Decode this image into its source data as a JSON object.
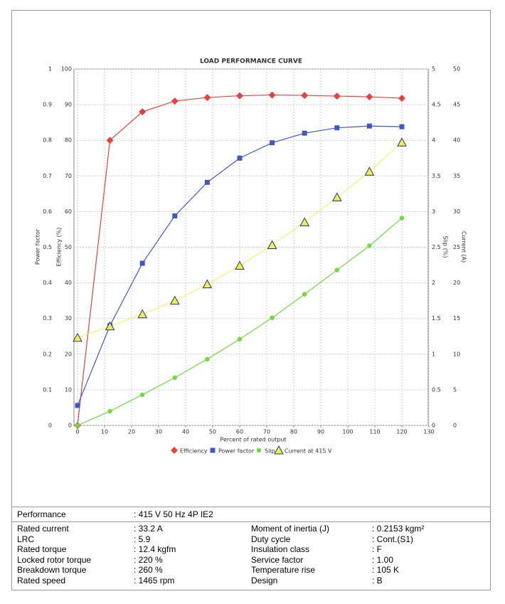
{
  "chart_data": {
    "type": "line",
    "title": "LOAD PERFORMANCE CURVE",
    "x_label": "Percent of rated output",
    "x": [
      0,
      12,
      24,
      36,
      48,
      60,
      72,
      84,
      96,
      108,
      120
    ],
    "xlim": [
      0,
      130
    ],
    "xticks": [
      0,
      10,
      20,
      30,
      40,
      50,
      60,
      70,
      80,
      90,
      100,
      110,
      120,
      130
    ],
    "grid": true,
    "axes": [
      {
        "label": "Power factor",
        "lim": [
          0,
          1
        ],
        "ticks": [
          0,
          0.1,
          0.2,
          0.3,
          0.4,
          0.5,
          0.6,
          0.7,
          0.8,
          0.9,
          1
        ]
      },
      {
        "label": "Efficiency (%)",
        "lim": [
          0,
          100
        ],
        "ticks": [
          0,
          10,
          20,
          30,
          40,
          50,
          60,
          70,
          80,
          90,
          100
        ]
      },
      {
        "label": "Slip (%)",
        "lim": [
          0,
          5
        ],
        "ticks": [
          0,
          0.5,
          1,
          1.5,
          2,
          2.5,
          3,
          3.5,
          4,
          4.5,
          5
        ]
      },
      {
        "label": "Current (A)",
        "lim": [
          0,
          50
        ],
        "ticks": [
          0,
          5,
          10,
          15,
          20,
          25,
          30,
          35,
          40,
          45,
          50
        ]
      }
    ],
    "series": [
      {
        "name": "Efficiency",
        "color": "#e84040",
        "marker": "diamond",
        "axis": 1,
        "values": [
          0,
          80,
          88,
          91,
          92,
          92.5,
          92.7,
          92.6,
          92.4,
          92.2,
          91.8
        ]
      },
      {
        "name": "Power factor",
        "color": "#3f57c8",
        "marker": "square",
        "axis": 0,
        "values": [
          0.056,
          0.28,
          0.455,
          0.588,
          0.682,
          0.75,
          0.793,
          0.82,
          0.835,
          0.84,
          0.838
        ]
      },
      {
        "name": "Slip",
        "color": "#6fdc3c",
        "marker": "circle",
        "axis": 2,
        "values": [
          0,
          0.2,
          0.43,
          0.67,
          0.93,
          1.21,
          1.51,
          1.84,
          2.18,
          2.52,
          2.91
        ]
      },
      {
        "name": "Current at 415 V",
        "color": "#f5f36a",
        "marker": "triangle",
        "axis": 3,
        "values": [
          12.3,
          13.9,
          15.6,
          17.5,
          19.8,
          22.4,
          25.3,
          28.5,
          32,
          35.6,
          39.7
        ]
      }
    ]
  },
  "table": {
    "header": [
      "Performance",
      ": 415 V 50 Hz 4P IE2"
    ],
    "left": [
      [
        "Rated current",
        ": 33.2 A"
      ],
      [
        "LRC",
        ": 5.9"
      ],
      [
        "Rated torque",
        ": 12.4 kgfm"
      ],
      [
        "Locked rotor torque",
        ": 220 %"
      ],
      [
        "Breakdown torque",
        ": 260 %"
      ],
      [
        "Rated speed",
        ": 1465 rpm"
      ]
    ],
    "right": [
      [
        "Moment of inertia (J)",
        ": 0.2153 kgm²"
      ],
      [
        "Duty cycle",
        ": Cont.(S1)"
      ],
      [
        "Insulation class",
        ": F"
      ],
      [
        "Service factor",
        ": 1.00"
      ],
      [
        "Temperature rise",
        ": 105 K"
      ],
      [
        "Design",
        ": B"
      ]
    ]
  }
}
